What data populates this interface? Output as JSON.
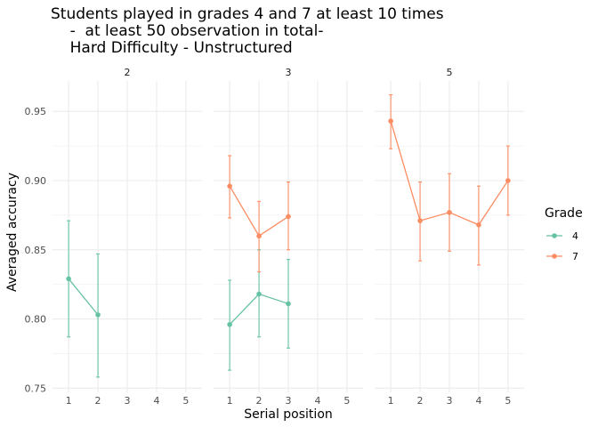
{
  "chart_data": {
    "type": "line",
    "title_lines": [
      "Students played in grades 4 and 7 at least 10 times",
      "    -  at least 50 observation in total-",
      "    Hard Difficulty - Unstructured"
    ],
    "xlabel": "Serial position",
    "ylabel": "Averaged accuracy",
    "x_ticks": [
      "1",
      "2",
      "3",
      "4",
      "5"
    ],
    "y_ticks": [
      "0.75",
      "0.80",
      "0.85",
      "0.90",
      "0.95"
    ],
    "xlim": [
      0.45,
      5.55
    ],
    "ylim": [
      0.747,
      0.972
    ],
    "grid": true,
    "legend": {
      "title": "Grade",
      "position": "right",
      "entries": [
        {
          "label": "4",
          "color": "#66C2A5"
        },
        {
          "label": "7",
          "color": "#FC8D62"
        }
      ]
    },
    "facets": [
      {
        "label": "2",
        "series": [
          {
            "grade": "4",
            "color": "#66C2A5",
            "points": [
              {
                "x": 1,
                "y": 0.829,
                "lo": 0.787,
                "hi": 0.871
              },
              {
                "x": 2,
                "y": 0.803,
                "lo": 0.758,
                "hi": 0.847
              }
            ]
          }
        ]
      },
      {
        "label": "3",
        "series": [
          {
            "grade": "4",
            "color": "#66C2A5",
            "points": [
              {
                "x": 1,
                "y": 0.796,
                "lo": 0.763,
                "hi": 0.828
              },
              {
                "x": 2,
                "y": 0.818,
                "lo": 0.787,
                "hi": 0.85
              },
              {
                "x": 3,
                "y": 0.811,
                "lo": 0.779,
                "hi": 0.843
              }
            ]
          },
          {
            "grade": "7",
            "color": "#FC8D62",
            "points": [
              {
                "x": 1,
                "y": 0.896,
                "lo": 0.873,
                "hi": 0.918
              },
              {
                "x": 2,
                "y": 0.86,
                "lo": 0.834,
                "hi": 0.885
              },
              {
                "x": 3,
                "y": 0.874,
                "lo": 0.85,
                "hi": 0.899
              }
            ]
          }
        ]
      },
      {
        "label": "5",
        "series": [
          {
            "grade": "7",
            "color": "#FC8D62",
            "points": [
              {
                "x": 1,
                "y": 0.943,
                "lo": 0.923,
                "hi": 0.962
              },
              {
                "x": 2,
                "y": 0.871,
                "lo": 0.842,
                "hi": 0.899
              },
              {
                "x": 3,
                "y": 0.877,
                "lo": 0.849,
                "hi": 0.905
              },
              {
                "x": 4,
                "y": 0.868,
                "lo": 0.839,
                "hi": 0.896
              },
              {
                "x": 5,
                "y": 0.9,
                "lo": 0.875,
                "hi": 0.925
              }
            ]
          }
        ]
      }
    ]
  }
}
